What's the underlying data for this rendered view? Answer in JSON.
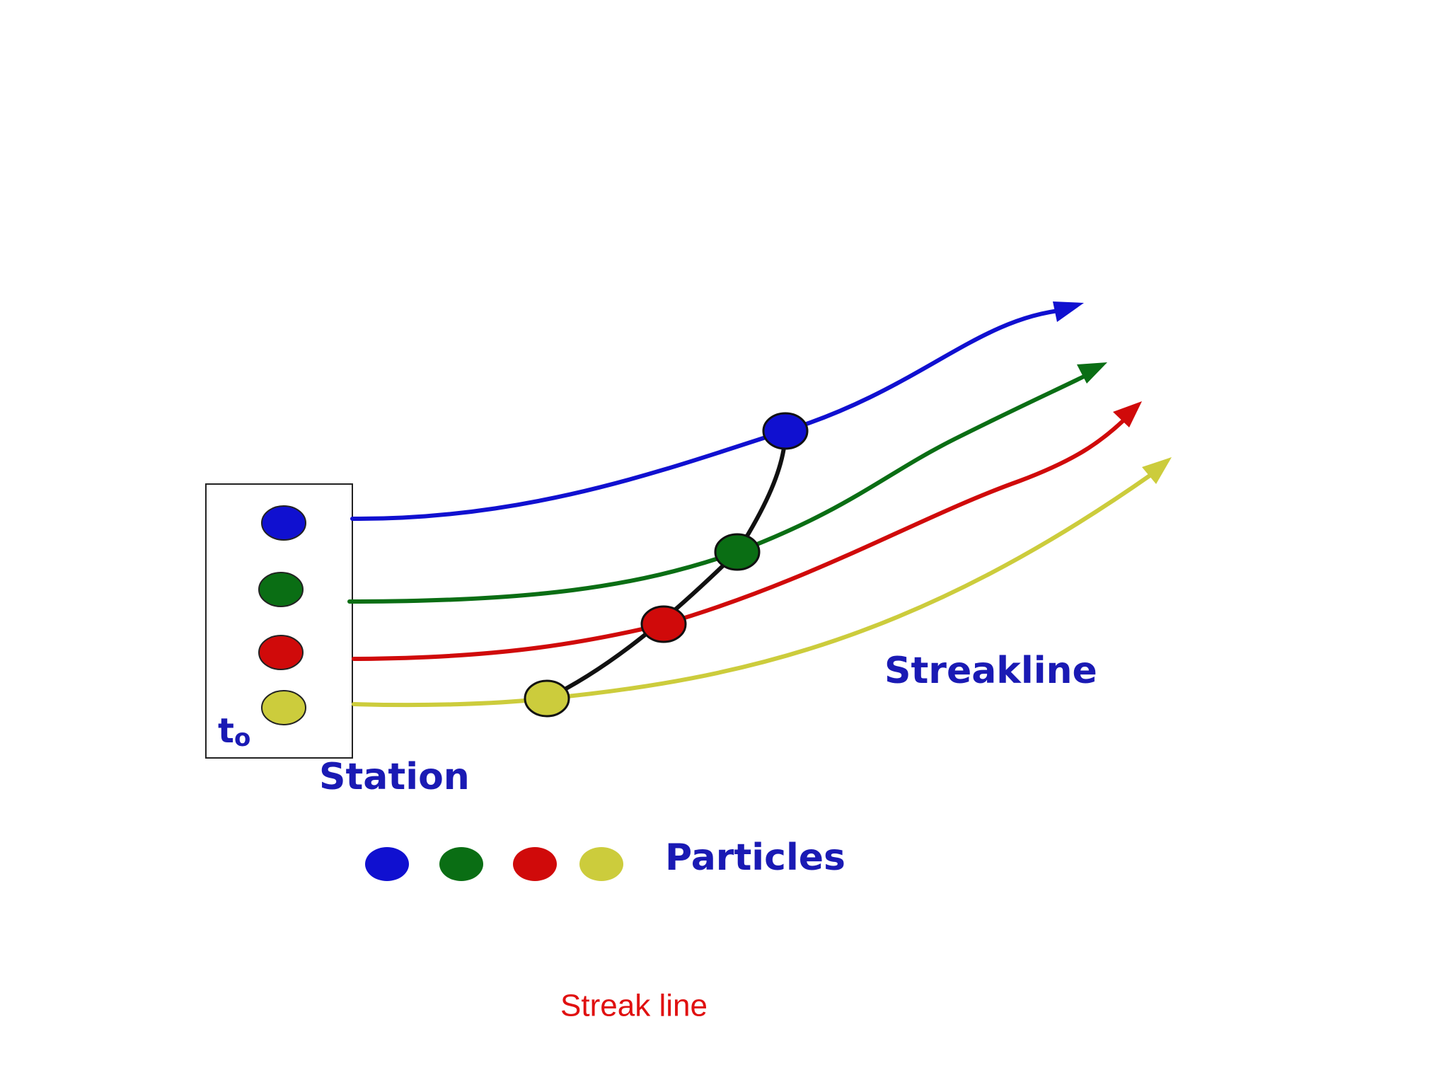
{
  "diagram": {
    "labels": {
      "streakline": "Streakline",
      "time": "t",
      "time_subscript": "o",
      "station": "Station",
      "particles": "Particles"
    }
  },
  "caption": "Streak line"
}
